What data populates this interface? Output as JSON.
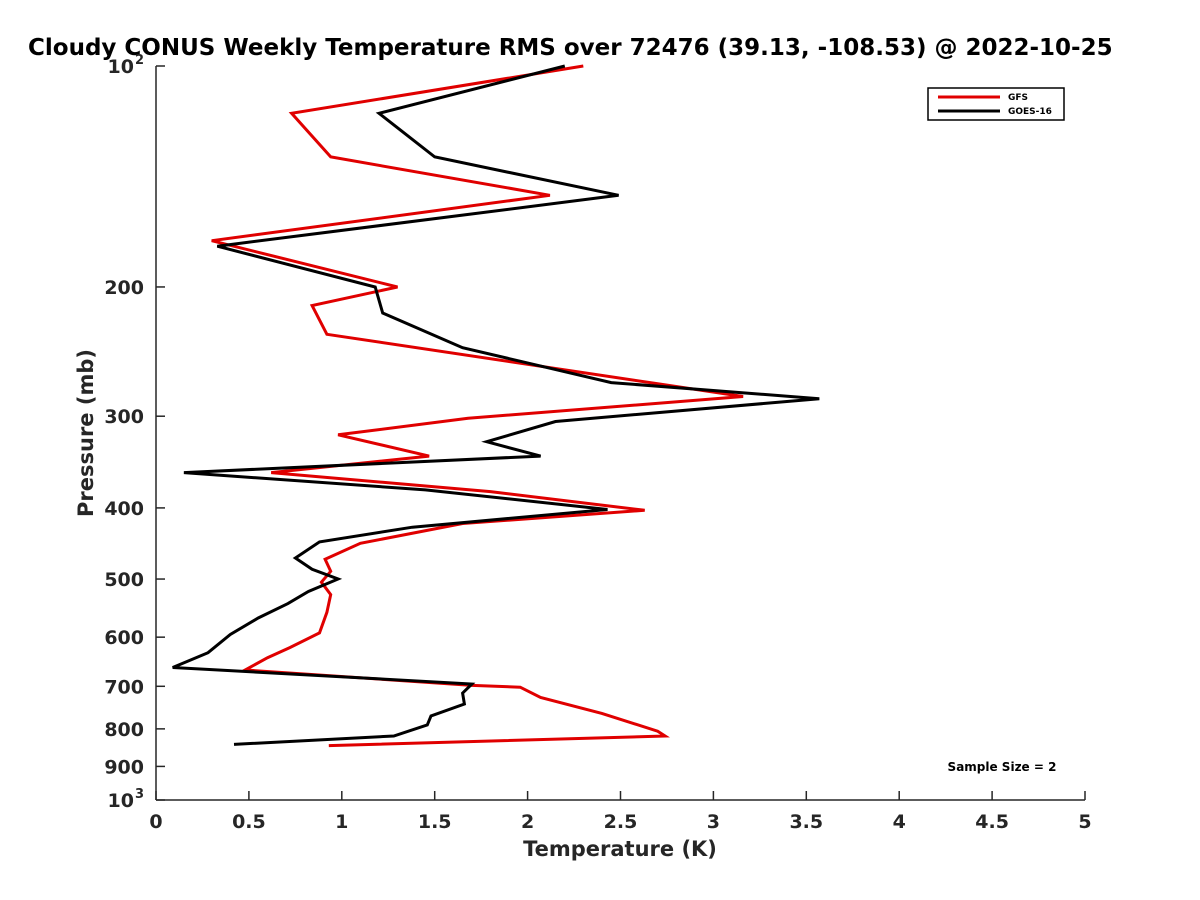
{
  "chart_data": {
    "type": "line",
    "title": "Cloudy CONUS Weekly Temperature RMS over 72476 (39.13, -108.53) @ 2022-10-25",
    "xlabel": "Temperature (K)",
    "ylabel": "Pressure (mb)",
    "xlim": [
      0,
      5
    ],
    "ylim": [
      100,
      1000
    ],
    "yscale": "log",
    "y_reversed": true,
    "grid": false,
    "legend_position": "top-right",
    "x_ticks": [
      "0",
      "0.5",
      "1",
      "1.5",
      "2",
      "2.5",
      "3",
      "3.5",
      "4",
      "4.5",
      "5"
    ],
    "y_ticks": [
      {
        "value": 100,
        "label": "10",
        "sup": "2"
      },
      {
        "value": 200,
        "label": "200",
        "sup": ""
      },
      {
        "value": 300,
        "label": "300",
        "sup": ""
      },
      {
        "value": 400,
        "label": "400",
        "sup": ""
      },
      {
        "value": 500,
        "label": "500",
        "sup": ""
      },
      {
        "value": 600,
        "label": "600",
        "sup": ""
      },
      {
        "value": 700,
        "label": "700",
        "sup": ""
      },
      {
        "value": 800,
        "label": "800",
        "sup": ""
      },
      {
        "value": 900,
        "label": "900",
        "sup": ""
      },
      {
        "value": 1000,
        "label": "10",
        "sup": "3"
      }
    ],
    "annotation": "Sample Size = 2",
    "series": [
      {
        "name": "GFS",
        "color": "#e00000",
        "points": [
          [
            2.3,
            100
          ],
          [
            0.73,
            116
          ],
          [
            0.94,
            133
          ],
          [
            2.12,
            150
          ],
          [
            0.3,
            173
          ],
          [
            1.3,
            200
          ],
          [
            0.84,
            212
          ],
          [
            0.92,
            232
          ],
          [
            3.16,
            282
          ],
          [
            1.68,
            302
          ],
          [
            0.98,
            318
          ],
          [
            1.47,
            340
          ],
          [
            0.62,
            358
          ],
          [
            1.8,
            380
          ],
          [
            2.63,
            403
          ],
          [
            1.65,
            420
          ],
          [
            1.1,
            447
          ],
          [
            0.91,
            470
          ],
          [
            0.94,
            488
          ],
          [
            0.89,
            505
          ],
          [
            0.94,
            525
          ],
          [
            0.92,
            555
          ],
          [
            0.88,
            592
          ],
          [
            0.72,
            620
          ],
          [
            0.6,
            640
          ],
          [
            0.48,
            665
          ],
          [
            1.7,
            698
          ],
          [
            1.96,
            702
          ],
          [
            2.07,
            725
          ],
          [
            2.4,
            762
          ],
          [
            2.7,
            806
          ],
          [
            2.74,
            818
          ],
          [
            0.93,
            843
          ]
        ]
      },
      {
        "name": "GOES-16",
        "color": "#000000",
        "points": [
          [
            2.2,
            100
          ],
          [
            1.2,
            116
          ],
          [
            1.5,
            133
          ],
          [
            2.49,
            150
          ],
          [
            0.33,
            176
          ],
          [
            1.18,
            200
          ],
          [
            1.22,
            217
          ],
          [
            1.65,
            242
          ],
          [
            2.45,
            270
          ],
          [
            3.57,
            284
          ],
          [
            2.15,
            305
          ],
          [
            1.78,
            325
          ],
          [
            2.07,
            340
          ],
          [
            0.15,
            358
          ],
          [
            1.45,
            378
          ],
          [
            2.43,
            402
          ],
          [
            1.38,
            425
          ],
          [
            0.88,
            445
          ],
          [
            0.75,
            468
          ],
          [
            0.84,
            485
          ],
          [
            0.98,
            500
          ],
          [
            0.82,
            520
          ],
          [
            0.71,
            540
          ],
          [
            0.55,
            565
          ],
          [
            0.4,
            595
          ],
          [
            0.28,
            630
          ],
          [
            0.09,
            660
          ],
          [
            1.7,
            695
          ],
          [
            1.65,
            715
          ],
          [
            1.66,
            740
          ],
          [
            1.48,
            768
          ],
          [
            1.46,
            790
          ],
          [
            1.28,
            818
          ],
          [
            0.42,
            840
          ]
        ]
      }
    ]
  }
}
